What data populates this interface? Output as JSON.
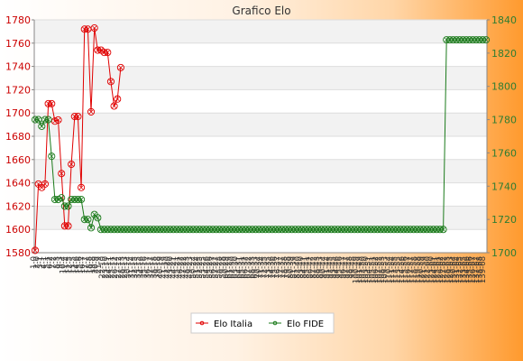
{
  "chart_data": {
    "type": "line",
    "title": "Grafico Elo",
    "y_left": {
      "min": 1580,
      "max": 1780,
      "ticks": [
        1580,
        1600,
        1620,
        1640,
        1660,
        1680,
        1700,
        1720,
        1740,
        1760,
        1780
      ]
    },
    "y_right": {
      "min": 1700,
      "max": 1840,
      "ticks": [
        1700,
        1720,
        1740,
        1760,
        1780,
        1800,
        1820,
        1840
      ]
    },
    "grid": true,
    "legend_position": "bottom-center",
    "series": [
      {
        "name": "Elo Italia",
        "axis": "left",
        "color": "#e00000",
        "values": [
          1582,
          1639,
          1636,
          1639,
          1708,
          1708,
          1693,
          1694,
          1648,
          1603,
          1603,
          1656,
          1697,
          1697,
          1636,
          1772,
          1772,
          1701,
          1773,
          1754,
          1754,
          1752,
          1752,
          1727,
          1706,
          1712,
          1739
        ]
      },
      {
        "name": "Elo FIDE",
        "axis": "right",
        "color": "#1a7a1a",
        "values": [
          1780,
          1780,
          1776,
          1780,
          1780,
          1758,
          1732,
          1732,
          1733,
          1728,
          1728,
          1732,
          1732,
          1732,
          1732,
          1720,
          1720,
          1715,
          1723,
          1721,
          1714,
          1714,
          1714,
          1714,
          1714,
          1714,
          1714,
          1714,
          1714,
          1714,
          1714,
          1714,
          1714,
          1714,
          1714,
          1714,
          1714,
          1714,
          1714,
          1714,
          1714,
          1714,
          1714,
          1714,
          1714,
          1714,
          1714,
          1714,
          1714,
          1714,
          1714,
          1714,
          1714,
          1714,
          1714,
          1714,
          1714,
          1714,
          1714,
          1714,
          1714,
          1714,
          1714,
          1714,
          1714,
          1714,
          1714,
          1714,
          1714,
          1714,
          1714,
          1714,
          1714,
          1714,
          1714,
          1714,
          1714,
          1714,
          1714,
          1714,
          1714,
          1714,
          1714,
          1714,
          1714,
          1714,
          1714,
          1714,
          1714,
          1714,
          1714,
          1714,
          1714,
          1714,
          1714,
          1714,
          1714,
          1714,
          1714,
          1714,
          1714,
          1714,
          1714,
          1714,
          1714,
          1714,
          1714,
          1714,
          1714,
          1714,
          1714,
          1714,
          1714,
          1714,
          1714,
          1714,
          1714,
          1714,
          1714,
          1714,
          1714,
          1714,
          1714,
          1714,
          1714,
          1828,
          1828,
          1828,
          1828,
          1828,
          1828,
          1828,
          1828,
          1828,
          1828,
          1828,
          1828,
          1828
        ]
      }
    ],
    "x_tick_labels": [
      "1-0",
      "2-0",
      "3-1",
      "4-1",
      "5-1",
      "6-2",
      "7-2",
      "8-3",
      "9-3",
      "10-4",
      "11-4",
      "12-5",
      "13-5",
      "14-6",
      "15-6",
      "16-7",
      "17-7",
      "18-8",
      "19-8",
      "20-9",
      "21-9",
      "22-10",
      "23-10",
      "24-11",
      "25-11",
      "26-12",
      "27-12",
      "28-13",
      "29-13",
      "30-14",
      "31-14",
      "32-15",
      "33-15",
      "34-16",
      "35-16",
      "36-17",
      "37-17",
      "38-18",
      "39-18",
      "40-19",
      "41-19",
      "42-20",
      "43-20",
      "44-21",
      "45-21",
      "46-22",
      "47-22",
      "48-23",
      "49-23",
      "50-24",
      "51-24",
      "52-25",
      "53-25",
      "54-26",
      "55-26",
      "56-27",
      "57-27",
      "58-28",
      "59-28",
      "60-29",
      "61-29",
      "62-30",
      "63-30",
      "64-31",
      "65-31",
      "66-32",
      "67-32",
      "68-33",
      "69-33",
      "70-34",
      "71-34",
      "72-35",
      "73-35",
      "74-36",
      "75-36",
      "76-37",
      "77-37",
      "78-38",
      "79-38",
      "80-39",
      "81-39",
      "82-40",
      "83-40",
      "84-41",
      "85-41",
      "86-42",
      "87-42",
      "88-43",
      "89-43",
      "90-44",
      "91-44",
      "92-45",
      "93-45",
      "94-46",
      "95-46",
      "96-47",
      "97-47",
      "98-48",
      "99-48",
      "100-49",
      "101-49",
      "102-50",
      "103-50",
      "104-51",
      "105-51",
      "106-52",
      "107-52",
      "108-53",
      "109-53",
      "110-54",
      "111-54",
      "112-55",
      "113-55",
      "114-56",
      "115-56",
      "116-57",
      "117-57",
      "118-58",
      "119-58",
      "120-59",
      "121-59",
      "122-60",
      "123-60",
      "124-61",
      "125-61",
      "126-62",
      "127-62",
      "128-63",
      "129-63",
      "130-64",
      "131-64",
      "132-65",
      "133-65",
      "134-66",
      "135-66",
      "136-67",
      "137-67",
      "138-68",
      "139-68"
    ]
  }
}
